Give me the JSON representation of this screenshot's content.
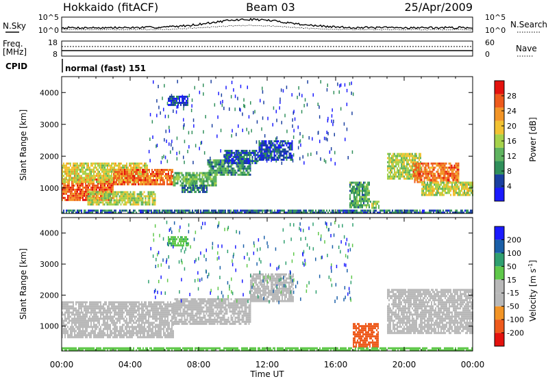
{
  "header": {
    "station": "Hokkaido (fitACF)",
    "beam": "Beam 03",
    "date": "25/Apr/2009",
    "cpid_label": "CPID",
    "cpid_value": "normal (fast) 151"
  },
  "top_panels": {
    "nsky": {
      "label": "N.Sky",
      "right_label": "N.Search",
      "left_ticks": [
        "10^5",
        "10^0"
      ],
      "right_ticks": [
        "10^5",
        "10^0"
      ]
    },
    "freq": {
      "label": "Freq.",
      "unit": "[MHz]",
      "left_ticks": [
        "18",
        "8"
      ],
      "right_ticks": [
        "60",
        "0"
      ],
      "right_label": "Nave"
    }
  },
  "colors": {
    "power_scale": [
      "#1a1aff",
      "#1a3fa0",
      "#2f8f5a",
      "#5fb35f",
      "#a6d24b",
      "#f2c232",
      "#f29426",
      "#ee5a1c",
      "#e4120e"
    ],
    "velocity_scale": [
      "#1a1aff",
      "#1a5fa8",
      "#2f9f6f",
      "#5fc84a",
      "#b8b8b8",
      "#b8b8b8",
      "#f29426",
      "#ee5a1c",
      "#e4120e"
    ],
    "ground_scatter": "#b8b8b8"
  },
  "chart_data": [
    {
      "type": "heatmap",
      "name": "power",
      "ylabel": "Slant Range [km]",
      "xlim": [
        0,
        24
      ],
      "ylim": [
        200,
        4500
      ],
      "yticks": [
        "1000",
        "2000",
        "3000",
        "4000"
      ],
      "ytick_values": [
        1000,
        2000,
        3000,
        4000
      ],
      "xticks": [
        "00:00",
        "04:00",
        "08:00",
        "12:00",
        "16:00",
        "20:00",
        "00:00"
      ],
      "colorbar": {
        "label": "Power [dB]",
        "ticks": [
          "4",
          "8",
          "12",
          "16",
          "20",
          "24",
          "28"
        ],
        "tick_values": [
          4,
          8,
          12,
          16,
          20,
          24,
          28
        ],
        "range": [
          0,
          32
        ]
      },
      "regions": [
        {
          "t0": 0.0,
          "t1": 3.0,
          "r0": 650,
          "r1": 1300,
          "level": 26
        },
        {
          "t0": 0.0,
          "t1": 5.0,
          "r0": 1200,
          "r1": 1800,
          "level": 18
        },
        {
          "t0": 3.0,
          "t1": 6.5,
          "r0": 1100,
          "r1": 1600,
          "level": 25
        },
        {
          "t0": 1.5,
          "t1": 5.5,
          "r0": 500,
          "r1": 900,
          "level": 16
        },
        {
          "t0": 6.5,
          "t1": 9.0,
          "r0": 1100,
          "r1": 1500,
          "level": 13
        },
        {
          "t0": 7.0,
          "t1": 8.5,
          "r0": 900,
          "r1": 1100,
          "level": 8
        },
        {
          "t0": 8.5,
          "t1": 11.0,
          "r0": 1400,
          "r1": 1900,
          "level": 10
        },
        {
          "t0": 9.5,
          "t1": 11.5,
          "r0": 1800,
          "r1": 2200,
          "level": 6
        },
        {
          "t0": 11.5,
          "t1": 13.5,
          "r0": 1900,
          "r1": 2500,
          "level": 5
        },
        {
          "t0": 6.2,
          "t1": 7.4,
          "r0": 3600,
          "r1": 3900,
          "level": 5
        },
        {
          "t0": 16.8,
          "t1": 18.0,
          "r0": 400,
          "r1": 1200,
          "level": 11
        },
        {
          "t0": 18.0,
          "t1": 18.5,
          "r0": 400,
          "r1": 600,
          "level": 14
        },
        {
          "t0": 19.0,
          "t1": 21.0,
          "r0": 1300,
          "r1": 2100,
          "level": 16
        },
        {
          "t0": 20.5,
          "t1": 23.2,
          "r0": 1200,
          "r1": 1800,
          "level": 25
        },
        {
          "t0": 21.0,
          "t1": 24.0,
          "r0": 800,
          "r1": 1200,
          "level": 17
        },
        {
          "t0": 0.0,
          "t1": 24.0,
          "r0": 200,
          "r1": 320,
          "level": 7
        }
      ]
    },
    {
      "type": "heatmap",
      "name": "velocity",
      "ylabel": "Slant Range [km]",
      "xlabel": "Time UT",
      "xlim": [
        0,
        24
      ],
      "ylim": [
        200,
        4500
      ],
      "yticks": [
        "1000",
        "2000",
        "3000",
        "4000"
      ],
      "ytick_values": [
        1000,
        2000,
        3000,
        4000
      ],
      "xticks": [
        "00:00",
        "04:00",
        "08:00",
        "12:00",
        "16:00",
        "20:00",
        "00:00"
      ],
      "colorbar": {
        "label": "Velocity [m s",
        "label_sup": "-1",
        "label_end": "]",
        "ticks": [
          "200",
          "100",
          "50",
          "15",
          "-15",
          "-50",
          "-100",
          "-200"
        ]
      },
      "regions": [
        {
          "t0": 0.0,
          "t1": 6.5,
          "r0": 650,
          "r1": 1800,
          "level": 0
        },
        {
          "t0": 6.5,
          "t1": 11.0,
          "r0": 1100,
          "r1": 1900,
          "level": 0
        },
        {
          "t0": 11.0,
          "t1": 13.5,
          "r0": 1800,
          "r1": 2700,
          "level": 0
        },
        {
          "t0": 17.0,
          "t1": 18.5,
          "r0": 350,
          "r1": 1100,
          "level": -150
        },
        {
          "t0": 19.0,
          "t1": 24.0,
          "r0": 800,
          "r1": 2200,
          "level": 0
        },
        {
          "t0": 6.2,
          "t1": 7.4,
          "r0": 3600,
          "r1": 3900,
          "level": 40
        },
        {
          "t0": 0.0,
          "t1": 24.0,
          "r0": 200,
          "r1": 320,
          "level": 30
        }
      ]
    }
  ]
}
